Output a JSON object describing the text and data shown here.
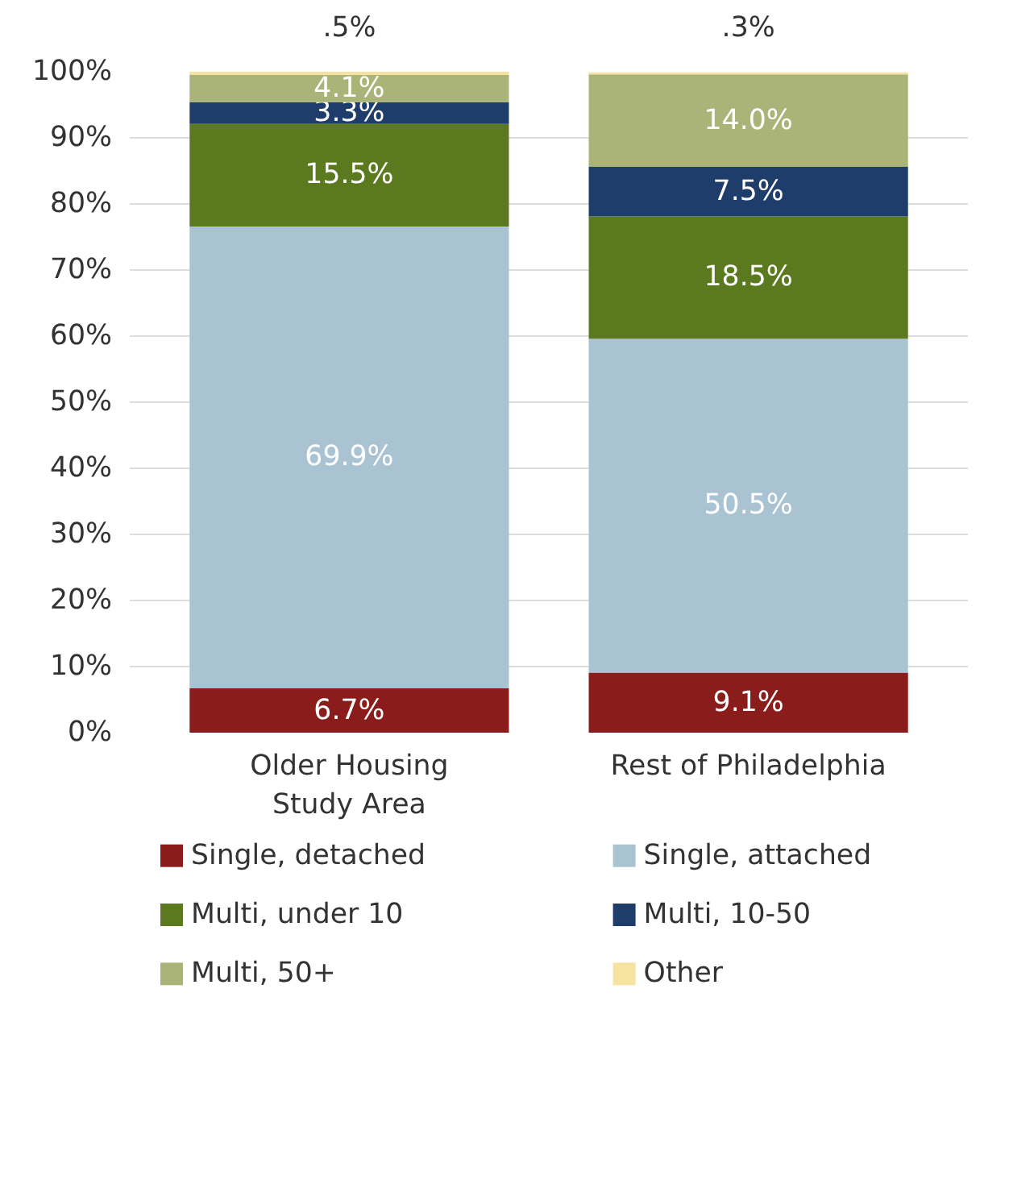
{
  "chart_data": {
    "type": "bar",
    "stacked": true,
    "categories": [
      "Older Housing Study Area",
      "Rest of Philadelphia"
    ],
    "ylim": [
      0,
      100
    ],
    "yticks": [
      {
        "value": 0,
        "label": "0%"
      },
      {
        "value": 10,
        "label": "10%"
      },
      {
        "value": 20,
        "label": "20%"
      },
      {
        "value": 30,
        "label": "30%"
      },
      {
        "value": 40,
        "label": "40%"
      },
      {
        "value": 50,
        "label": "50%"
      },
      {
        "value": 60,
        "label": "60%"
      },
      {
        "value": 70,
        "label": "70%"
      },
      {
        "value": 80,
        "label": "80%"
      },
      {
        "value": 90,
        "label": "90%"
      },
      {
        "value": 100,
        "label": "100%"
      }
    ],
    "grid": "y",
    "legend": "bottom",
    "series": [
      {
        "name": "Single, detached",
        "color": "#8b1c1c",
        "values": [
          6.7,
          9.1
        ],
        "value_labels": [
          "6.7%",
          "9.1%"
        ]
      },
      {
        "name": "Single, attached",
        "color": "#a9c3d2",
        "values": [
          69.9,
          50.5
        ],
        "value_labels": [
          "69.9%",
          "50.5%"
        ]
      },
      {
        "name": "Multi, under 10",
        "color": "#5b7a20",
        "values": [
          15.5,
          18.5
        ],
        "value_labels": [
          "15.5%",
          "18.5%"
        ]
      },
      {
        "name": "Multi, 10-50",
        "color": "#1e3d6a",
        "values": [
          3.3,
          7.5
        ],
        "value_labels": [
          "3.3%",
          "7.5%"
        ]
      },
      {
        "name": "Multi, 50+",
        "color": "#aab478",
        "values": [
          4.1,
          14.0
        ],
        "value_labels": [
          "4.1%",
          "14.0%"
        ]
      },
      {
        "name": "Other",
        "color": "#f6e3a0",
        "values": [
          0.5,
          0.3
        ],
        "value_labels": [
          ".5%",
          ".3%"
        ]
      }
    ]
  }
}
